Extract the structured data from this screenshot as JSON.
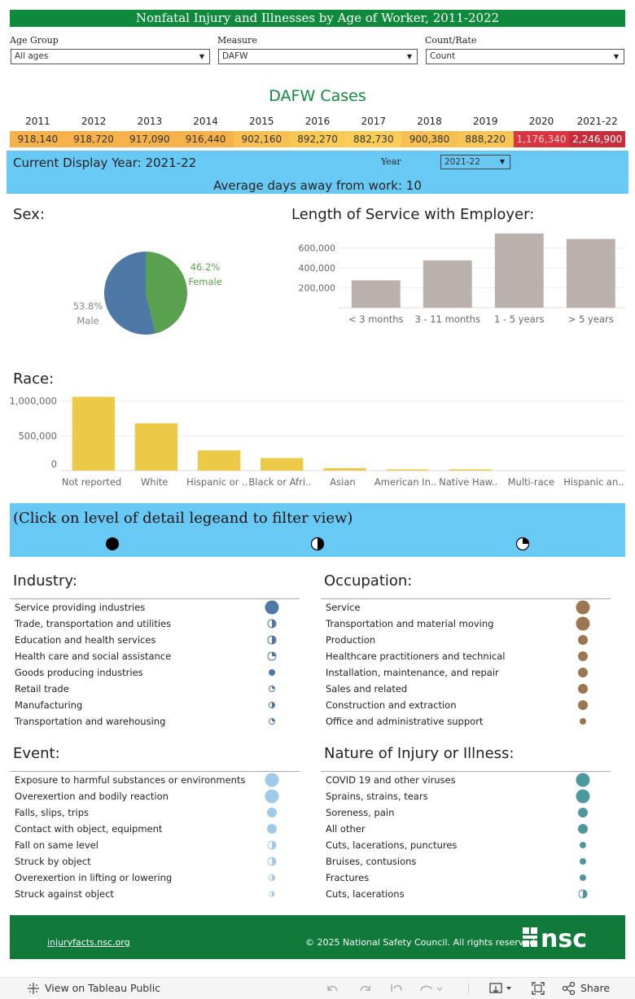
{
  "title": "Nonfatal Injury and Illnesses by Age of Worker, 2011-2022",
  "filters": [
    {
      "label": "Age Group",
      "value": "All ages"
    },
    {
      "label": "Measure",
      "value": "DAFW"
    },
    {
      "label": "Count/Rate",
      "value": "Count"
    }
  ],
  "dafw": {
    "title": "DAFW Cases",
    "years": [
      "2011",
      "2012",
      "2013",
      "2014",
      "2015",
      "2016",
      "2017",
      "2018",
      "2019",
      "2020",
      "2021-22"
    ],
    "values": [
      "918,140",
      "918,720",
      "917,090",
      "916,440",
      "902,160",
      "892,270",
      "882,730",
      "900,380",
      "888,220",
      "1,176,340",
      "2,246,900"
    ],
    "colors": [
      "#f6b14b",
      "#f6b14b",
      "#f6b14b",
      "#f6b14b",
      "#f8c052",
      "#fac955",
      "#fbcd57",
      "#f8c052",
      "#f9c655",
      "#d9343f",
      "#c92c3a"
    ],
    "text_colors": [
      "#333",
      "#333",
      "#333",
      "#333",
      "#333",
      "#333",
      "#333",
      "#333",
      "#333",
      "#f7d0d0",
      "#ffffff"
    ]
  },
  "display": {
    "current_year": "Current Display Year: 2021-22",
    "year_label": "Year",
    "year_value": "2021-22",
    "avg_days": "Average days away from work: 10"
  },
  "sex": {
    "title": "Sex:",
    "chart_data": {
      "type": "pie",
      "slices": [
        {
          "label": "Female",
          "pct_label": "46.2%",
          "value": 46.2,
          "color": "#59a14f"
        },
        {
          "label": "Male",
          "pct_label": "53.8%",
          "value": 53.8,
          "color": "#4e79a7"
        }
      ]
    }
  },
  "service": {
    "title": "Length of Service with Employer:",
    "chart_data": {
      "type": "bar",
      "categories": [
        "< 3 months",
        "3 - 11 months",
        "1 - 5 years",
        "> 5 years"
      ],
      "values": [
        275000,
        475000,
        745000,
        690000
      ],
      "yticks": [
        "600,000",
        "400,000",
        "200,000"
      ],
      "ytick_values": [
        600000,
        400000,
        200000
      ],
      "ylim": [
        0,
        800000
      ],
      "color": "#bab0ac"
    }
  },
  "race": {
    "title": "Race:",
    "chart_data": {
      "type": "bar",
      "categories": [
        "Not reported",
        "White",
        "Hispanic or ..",
        "Black or Afri..",
        "Asian",
        "American In..",
        "Native Haw..",
        "Multi-race",
        "Hispanic an.."
      ],
      "values": [
        1060000,
        680000,
        290000,
        180000,
        35000,
        12000,
        8000,
        0,
        0
      ],
      "yticks": [
        "1,000,000",
        "500,000",
        "0"
      ],
      "ytick_values": [
        1000000,
        500000,
        0
      ],
      "ylim": [
        0,
        1100000
      ],
      "color": "#edc948"
    }
  },
  "detail": {
    "text": "(Click on level of detail legeand to filter view)"
  },
  "industry": {
    "title": "Industry:",
    "color": "#4e79a7",
    "items": [
      {
        "label": "Service providing industries",
        "icon": "full-large"
      },
      {
        "label": "Trade, transportation and utilities",
        "icon": "half"
      },
      {
        "label": "Education and health services",
        "icon": "half"
      },
      {
        "label": "Health care and social assistance",
        "icon": "quarter"
      },
      {
        "label": "Goods producing industries",
        "icon": "full-small"
      },
      {
        "label": "Retail trade",
        "icon": "quarter-small"
      },
      {
        "label": "Manufacturing",
        "icon": "half-small"
      },
      {
        "label": "Transportation and warehousing",
        "icon": "quarter-small"
      }
    ]
  },
  "occupation": {
    "title": "Occupation:",
    "color": "#9c7650",
    "items": [
      {
        "label": "Service",
        "icon": "full-large"
      },
      {
        "label": "Transportation and material moving",
        "icon": "full-large"
      },
      {
        "label": "Production",
        "icon": "full-med"
      },
      {
        "label": "Healthcare practitioners and technical",
        "icon": "full-med"
      },
      {
        "label": "Installation, maintenance, and repair",
        "icon": "full-med"
      },
      {
        "label": "Sales and related",
        "icon": "full-med"
      },
      {
        "label": "Construction and extraction",
        "icon": "full-med"
      },
      {
        "label": "Office and administrative support",
        "icon": "full-small"
      }
    ]
  },
  "event": {
    "title": "Event:",
    "color": "#a0cbe8",
    "items": [
      {
        "label": "Exposure to harmful substances or environments",
        "icon": "full-large"
      },
      {
        "label": "Overexertion and bodily reaction",
        "icon": "full-large"
      },
      {
        "label": "Falls, slips, trips",
        "icon": "full-med"
      },
      {
        "label": "Contact with object, equipment",
        "icon": "full-med"
      },
      {
        "label": "Fall on same level",
        "icon": "half"
      },
      {
        "label": "Struck by object",
        "icon": "half"
      },
      {
        "label": "Overexertion in lifting or lowering",
        "icon": "half-small"
      },
      {
        "label": "Struck against object",
        "icon": "half-tiny"
      }
    ]
  },
  "nature": {
    "title": "Nature of Injury or Illness:",
    "color": "#4e979c",
    "items": [
      {
        "label": "COVID 19 and other viruses",
        "icon": "full-large"
      },
      {
        "label": "Sprains, strains, tears",
        "icon": "full-large"
      },
      {
        "label": "Soreness, pain",
        "icon": "full-med"
      },
      {
        "label": "All other",
        "icon": "full-med"
      },
      {
        "label": "Cuts, lacerations, punctures",
        "icon": "full-small"
      },
      {
        "label": "Bruises, contusions",
        "icon": "full-small"
      },
      {
        "label": "Fractures",
        "icon": "full-small"
      },
      {
        "label": "Cuts, lacerations",
        "icon": "half"
      }
    ]
  },
  "footer": {
    "link": "injuryfacts.nsc.org",
    "copyright": "© 2025 National Safety Council. All rights reserved.",
    "logo_text": "nsc"
  },
  "toolbar": {
    "view_label": "View on Tableau Public",
    "share_label": "Share"
  }
}
